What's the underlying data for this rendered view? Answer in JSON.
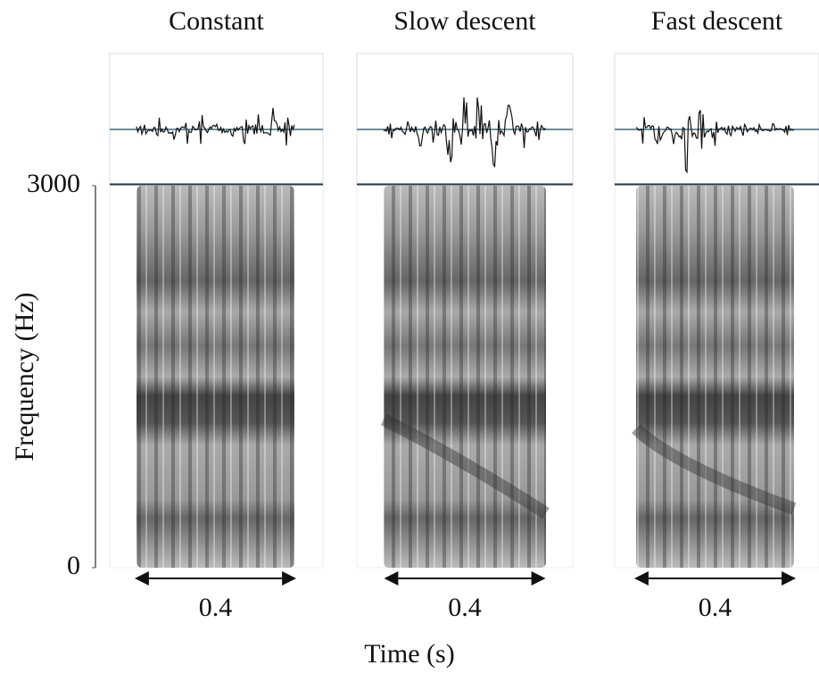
{
  "chart_data": {
    "type": "spectrogram",
    "ylabel": "Frequency (Hz)",
    "xlabel": "Time (s)",
    "ylim": [
      0,
      3000
    ],
    "yticks": [
      0,
      3000
    ],
    "panels": [
      {
        "title": "Constant",
        "duration": 0.4
      },
      {
        "title": "Slow descent",
        "duration": 0.4
      },
      {
        "title": "Fast descent",
        "duration": 0.4
      }
    ]
  }
}
